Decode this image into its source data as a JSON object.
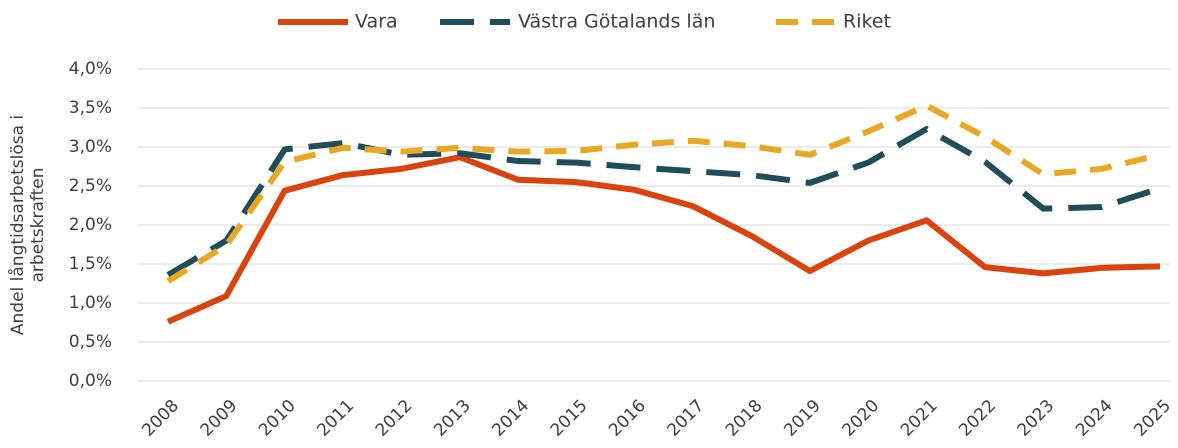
{
  "chart_data": {
    "type": "line",
    "y_label": [
      "Andel långtidsarbetslösa i",
      "arbetskraften"
    ],
    "categories": [
      "2008",
      "2009",
      "2010",
      "2011",
      "2012",
      "2013",
      "2014",
      "2015",
      "2016",
      "2017",
      "2018",
      "2019",
      "2020",
      "2021",
      "2022",
      "2023",
      "2024",
      "2025"
    ],
    "series": [
      {
        "name": "Vara",
        "color": "#d9430e",
        "dash": "solid",
        "values": [
          0.76,
          1.09,
          2.44,
          2.64,
          2.72,
          2.87,
          2.58,
          2.55,
          2.45,
          2.24,
          1.86,
          1.41,
          1.8,
          2.06,
          1.46,
          1.38,
          1.45,
          1.47
        ]
      },
      {
        "name": "Västra Götalands län",
        "color": "#1f4e5a",
        "dash": "long-dash",
        "values": [
          1.36,
          1.8,
          2.97,
          3.05,
          2.9,
          2.92,
          2.82,
          2.8,
          2.74,
          2.69,
          2.64,
          2.54,
          2.8,
          3.23,
          2.81,
          2.21,
          2.23,
          2.47
        ]
      },
      {
        "name": "Riket",
        "color": "#e8a826",
        "dash": "dash",
        "values": [
          1.28,
          1.74,
          2.81,
          2.99,
          2.94,
          2.99,
          2.94,
          2.95,
          3.03,
          3.08,
          3.01,
          2.9,
          3.2,
          3.53,
          3.13,
          2.65,
          2.72,
          2.9
        ]
      }
    ],
    "ylim": [
      0,
      4
    ],
    "yticks": [
      {
        "value": 0,
        "label": "0,0%"
      },
      {
        "value": 0.5,
        "label": "0,5%"
      },
      {
        "value": 1,
        "label": "1,0%"
      },
      {
        "value": 1.5,
        "label": "1,5%"
      },
      {
        "value": 2,
        "label": "2,0%"
      },
      {
        "value": 2.5,
        "label": "2,5%"
      },
      {
        "value": 3,
        "label": "3,0%"
      },
      {
        "value": 3.5,
        "label": "3,5%"
      },
      {
        "value": 4,
        "label": "4,0%"
      }
    ],
    "grid": true,
    "legend": "top"
  }
}
